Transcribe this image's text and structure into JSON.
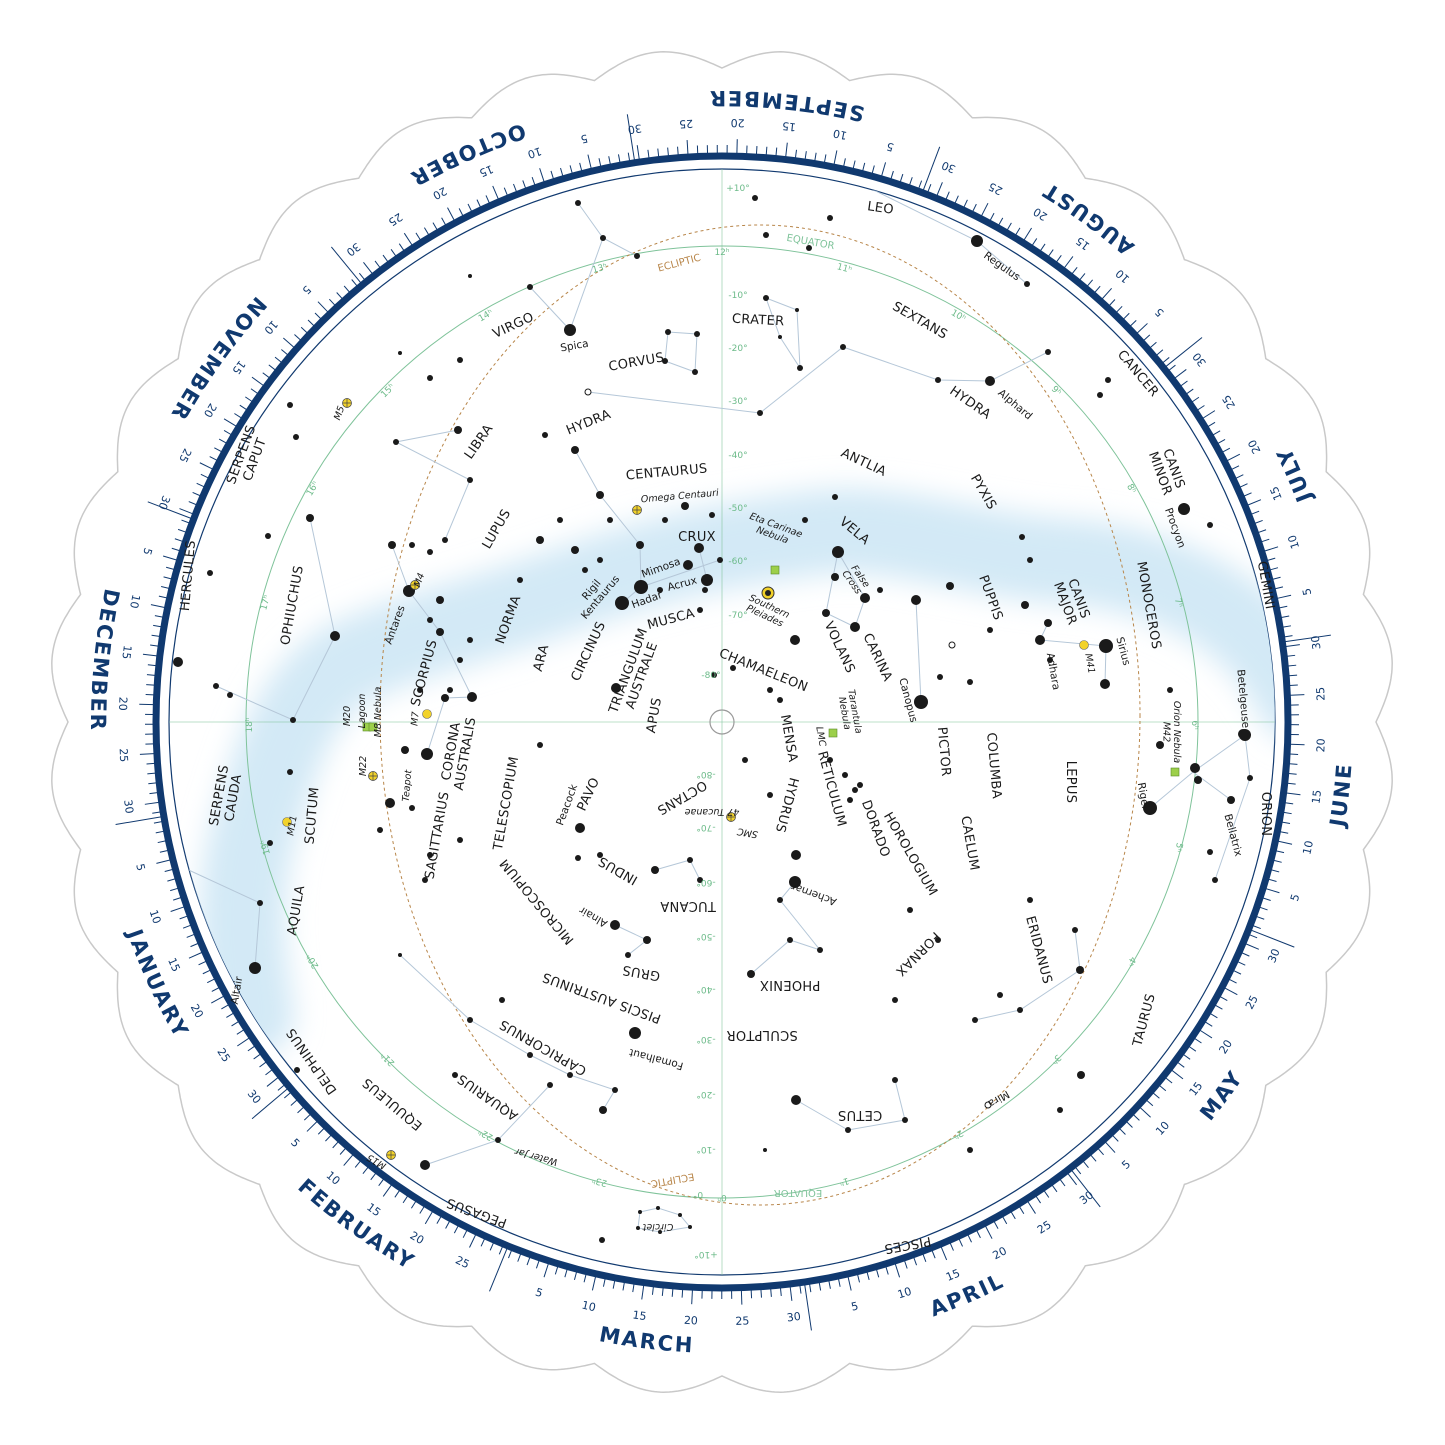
{
  "colors": {
    "navy": "#10396f",
    "milky_way": "#d3e9f6",
    "equator": "#7fc39a",
    "ecliptic": "#b8864a",
    "constellation_line": "#b5c7d8",
    "star": "#1a1a1a",
    "cluster_marker": "#f2d22a",
    "nebula_marker": "#9ccf4a",
    "scallop_edge": "#c9c9c9"
  },
  "months": [
    {
      "name": "JANUARY",
      "days": [
        "5",
        "10",
        "15",
        "20",
        "25",
        "30"
      ]
    },
    {
      "name": "FEBRUARY",
      "days": [
        "5",
        "10",
        "15",
        "20",
        "25"
      ]
    },
    {
      "name": "MARCH",
      "days": [
        "5",
        "10",
        "15",
        "20",
        "25",
        "30"
      ]
    },
    {
      "name": "APRIL",
      "days": [
        "5",
        "10",
        "15",
        "20",
        "25",
        "30"
      ]
    },
    {
      "name": "MAY",
      "days": [
        "5",
        "10",
        "15",
        "20",
        "25",
        "30"
      ]
    },
    {
      "name": "JUNE",
      "days": [
        "5",
        "10",
        "15",
        "20",
        "25",
        "30"
      ]
    },
    {
      "name": "JULY",
      "days": [
        "5",
        "10",
        "15",
        "20",
        "25",
        "30"
      ]
    },
    {
      "name": "AUGUST",
      "days": [
        "5",
        "10",
        "15",
        "20",
        "25",
        "30"
      ]
    },
    {
      "name": "SEPTEMBER",
      "days": [
        "5",
        "10",
        "15",
        "20",
        "25",
        "30"
      ]
    },
    {
      "name": "OCTOBER",
      "days": [
        "5",
        "10",
        "15",
        "20",
        "25",
        "30"
      ]
    },
    {
      "name": "NOVEMBER",
      "days": [
        "5",
        "10",
        "15",
        "20",
        "25",
        "30"
      ]
    },
    {
      "name": "DECEMBER",
      "days": [
        "5",
        "10",
        "15",
        "20",
        "25",
        "30"
      ]
    }
  ],
  "chart": {
    "constellations": [
      "LEO",
      "CRATER",
      "SEXTANS",
      "CANCER",
      "VIRGO",
      "CORVUS",
      "HYDRA",
      "HYDRA",
      "LIBRA",
      "CENTAURUS",
      "ANTLIA",
      "PYXIS",
      [
        "CANIS",
        "MINOR"
      ],
      [
        "SERPENS",
        "CAPUT"
      ],
      "HERCULES",
      "OPHIUCHUS",
      "LUPUS",
      "CRUX",
      "VELA",
      "PUPPIS",
      [
        "CANIS",
        "MAJOR"
      ],
      "MONOCEROS",
      "GEMINI",
      "NORMA",
      "MUSCA",
      "CIRCINUS",
      "ARA",
      "SCORPIUS",
      "VOLANS",
      "CARINA",
      "CHAMAELEON",
      [
        "TRIANGULUM",
        "AUSTRALE"
      ],
      "APUS",
      [
        "CORONA",
        "AUSTRALIS"
      ],
      "MENSA",
      "PICTOR",
      "COLUMBA",
      "RETICULUM",
      "LEPUS",
      "ORION",
      "TELESCOPIUM",
      "PAVO",
      "OCTANS",
      "HYDRUS",
      [
        "SERPENS",
        "CAUDA"
      ],
      "SCUTUM",
      "DORADO",
      "HOROLOGIUM",
      "CAELUM",
      "SAGITTARIUS",
      "INDUS",
      "ERIDANUS",
      "TUCANA",
      "AQUILA",
      "MICROSCOPIUM",
      "GRUS",
      "FORNAX",
      "PHOENIX",
      "TAURUS",
      "PISCIS AUSTRINUS",
      "SCULPTOR",
      "CAPRICORNUS",
      "DELPHINUS",
      "AQUARIUS",
      "CETUS",
      "EQUULEUS",
      "PEGASUS",
      "PISCES"
    ],
    "stars": [
      "Spica",
      "Regulus",
      "Alphard",
      "Procyon",
      "Mimosa",
      [
        "Rigil",
        "Kentaurus"
      ],
      "Hadar",
      "Acrux",
      "Antares",
      "Sirius",
      "Adhara",
      "Canopus",
      "Betelgeuse",
      "Rigel",
      "Bellatrix",
      "Peacock",
      "Achernar",
      "Alnair",
      "Fomalhaut",
      "Altair",
      "Mira"
    ],
    "deep_sky": [
      "Omega Centauri",
      [
        "Eta Carinae",
        "Nebula"
      ],
      [
        "Southern",
        "Pleiades"
      ],
      [
        "False",
        "Cross"
      ],
      "M4",
      "M5",
      "M41",
      [
        "Tarantula",
        "Nebula"
      ],
      "LMC",
      "M20",
      "Lagoon",
      "M8 Nebula",
      "M7",
      [
        "Orion Nebula",
        "M42"
      ],
      "M22",
      "Teapot",
      "M11",
      "47 Tucanae",
      "SMC",
      "Water Jar",
      "M15",
      "Circlet"
    ],
    "ra_hours": [
      "12ʰ",
      "11ʰ",
      "10ʰ",
      "9ʰ",
      "8ʰ",
      "7ʰ",
      "6ʰ",
      "5ʰ",
      "4ʰ",
      "3ʰ",
      "2ʰ",
      "1ʰ",
      "0ʰ",
      "23ʰ",
      "22ʰ",
      "21ʰ",
      "20ʰ",
      "19ʰ",
      "18ʰ",
      "17ʰ",
      "16ʰ",
      "15ʰ",
      "14ʰ",
      "13ʰ"
    ],
    "declinations_top": [
      "+10°",
      "-10°",
      "-20°",
      "-30°",
      "-40°",
      "-50°",
      "-60°",
      "-70°",
      "-80°"
    ],
    "declinations_bottom": [
      "-80°",
      "-70°",
      "-60°",
      "-50°",
      "-40°",
      "-30°",
      "-20°",
      "-10°",
      "0°",
      "+10°"
    ],
    "circle_labels": {
      "equator": "EQUATOR",
      "ecliptic": "ECLIPTIC"
    }
  }
}
